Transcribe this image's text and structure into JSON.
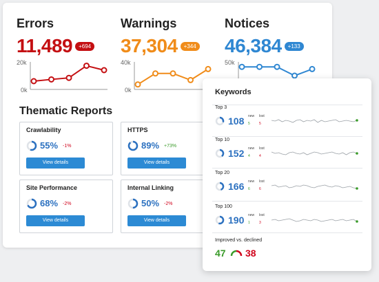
{
  "metrics": [
    {
      "title": "Errors",
      "value": "11,489",
      "delta": "+694",
      "color": "#c40f12",
      "ymax": "20k",
      "ymin": "0k",
      "trend": [
        0.25,
        0.33,
        0.4,
        0.95,
        0.75
      ]
    },
    {
      "title": "Warnings",
      "value": "37,304",
      "delta": "+344",
      "color": "#f08c1a",
      "ymax": "40k",
      "ymin": "0k",
      "trend": [
        0.1,
        0.6,
        0.6,
        0.3,
        0.8
      ]
    },
    {
      "title": "Notices",
      "value": "46,384",
      "delta": "+133",
      "color": "#2f87d2",
      "ymax": "50k",
      "ymin": "0k",
      "trend": [
        0.9,
        0.9,
        0.9,
        0.5,
        0.8
      ]
    }
  ],
  "thematic": {
    "title": "Thematic Reports",
    "cards": [
      {
        "name": "Crawlability",
        "pct": "55%",
        "change": "-1%",
        "change_color": "#d0021b",
        "fill": 0.55,
        "button": "View details"
      },
      {
        "name": "HTTPS",
        "pct": "89%",
        "change": "+73%",
        "change_color": "#3a9b2a",
        "fill": 0.89,
        "button": "View details"
      },
      {
        "name": "Site Performance",
        "pct": "68%",
        "change": "-2%",
        "change_color": "#d0021b",
        "fill": 0.68,
        "button": "View details"
      },
      {
        "name": "Internal Linking",
        "pct": "50%",
        "change": "-2%",
        "change_color": "#d0021b",
        "fill": 0.5,
        "button": "View details"
      }
    ]
  },
  "keywords": {
    "title": "Keywords",
    "rows": [
      {
        "label": "Top 3",
        "value": "108",
        "new_label": "new",
        "new": "5",
        "lost_label": "lost",
        "lost": "5",
        "fill": 0.3,
        "end_color": "#3a9b2a"
      },
      {
        "label": "Top 10",
        "value": "152",
        "new_label": "new",
        "new": "4",
        "lost_label": "lost",
        "lost": "4",
        "fill": 0.4,
        "end_color": "#3a9b2a"
      },
      {
        "label": "Top 20",
        "value": "166",
        "new_label": "new",
        "new": "6",
        "lost_label": "lost",
        "lost": "6",
        "fill": 0.45,
        "end_color": "#3a9b2a"
      },
      {
        "label": "Top 100",
        "value": "190",
        "new_label": "new",
        "new": "1",
        "lost_label": "lost",
        "lost": "3",
        "fill": 0.55,
        "end_color": "#3a9b2a"
      }
    ],
    "improved_label": "Improved vs. declined",
    "improved": "47",
    "declined": "38"
  }
}
